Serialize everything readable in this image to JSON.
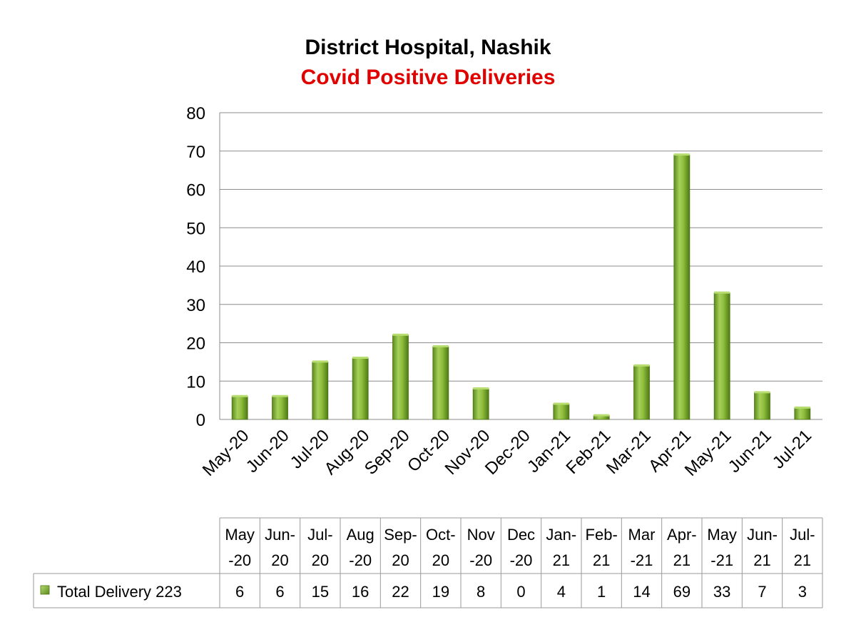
{
  "chart_data": {
    "type": "bar",
    "title": "District Hospital, Nashik",
    "subtitle": "Covid Positive Deliveries",
    "categories": [
      "May-20",
      "Jun-20",
      "Jul-20",
      "Aug-20",
      "Sep-20",
      "Oct-20",
      "Nov-20",
      "Dec-20",
      "Jan-21",
      "Feb-21",
      "Mar-21",
      "Apr-21",
      "May-21",
      "Jun-21",
      "Jul-21"
    ],
    "table_headers": [
      [
        "May",
        "-20"
      ],
      [
        "Jun-",
        "20"
      ],
      [
        "Jul-",
        "20"
      ],
      [
        "Aug",
        "-20"
      ],
      [
        "Sep-",
        "20"
      ],
      [
        "Oct-",
        "20"
      ],
      [
        "Nov",
        "-20"
      ],
      [
        "Dec",
        "-20"
      ],
      [
        "Jan-",
        "21"
      ],
      [
        "Feb-",
        "21"
      ],
      [
        "Mar",
        "-21"
      ],
      [
        "Apr-",
        "21"
      ],
      [
        "May",
        "-21"
      ],
      [
        "Jun-",
        "21"
      ],
      [
        "Jul-",
        "21"
      ]
    ],
    "series": [
      {
        "name": "Total Delivery 223",
        "values": [
          6,
          6,
          15,
          16,
          22,
          19,
          8,
          0,
          4,
          1,
          14,
          69,
          33,
          7,
          3
        ],
        "color": "#8ab83a"
      }
    ],
    "yticks": [
      "0",
      "10",
      "20",
      "30",
      "40",
      "50",
      "60",
      "70",
      "80"
    ],
    "ylim": [
      0,
      80
    ],
    "grid": true,
    "legend": "data-table"
  }
}
